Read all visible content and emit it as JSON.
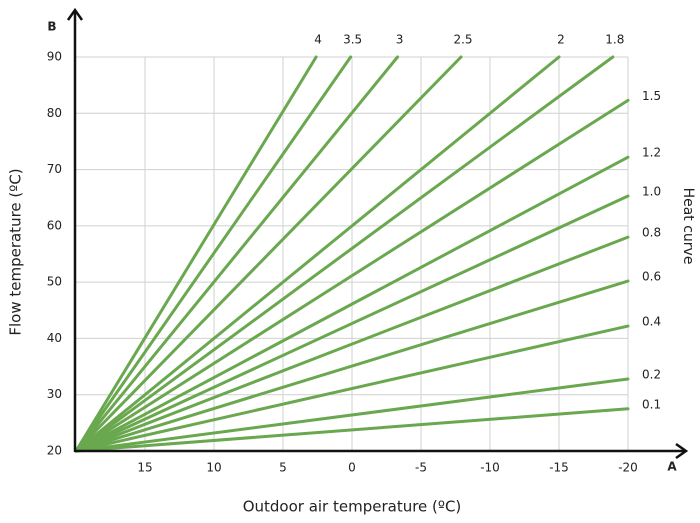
{
  "chart_data": {
    "type": "line",
    "x_label": "Outdoor air temperature (ºC)",
    "y_label": "Flow temperature (ºC)",
    "x_axis_name": "A",
    "y_axis_name": "B",
    "legend_title": "Heat curve",
    "xlim": [
      20,
      -20
    ],
    "xticks": [
      15,
      10,
      5,
      0,
      -5,
      -10,
      -15,
      -20
    ],
    "ylim": [
      20,
      90
    ],
    "yticks": [
      20,
      30,
      40,
      50,
      60,
      70,
      80,
      90
    ],
    "grid": true,
    "color": "#6aa84f",
    "series": [
      {
        "name": "4",
        "x": [
          20,
          2.6
        ],
        "values": [
          20,
          90
        ]
      },
      {
        "name": "3.5",
        "x": [
          20,
          0.1
        ],
        "values": [
          20,
          90
        ]
      },
      {
        "name": "3",
        "x": [
          20,
          -3.3
        ],
        "values": [
          20,
          90
        ]
      },
      {
        "name": "2.5",
        "x": [
          20,
          -7.9
        ],
        "values": [
          20,
          90
        ]
      },
      {
        "name": "2",
        "x": [
          20,
          -15
        ],
        "values": [
          20,
          90
        ]
      },
      {
        "name": "1.8",
        "x": [
          20,
          -18.9
        ],
        "values": [
          20,
          90
        ]
      },
      {
        "name": "1.5",
        "x": [
          20,
          -20
        ],
        "values": [
          20,
          82.3
        ]
      },
      {
        "name": "1.2",
        "x": [
          20,
          -20
        ],
        "values": [
          20,
          72.2
        ]
      },
      {
        "name": "1.0",
        "x": [
          20,
          -20
        ],
        "values": [
          20,
          65.3
        ]
      },
      {
        "name": "0.8",
        "x": [
          20,
          -20
        ],
        "values": [
          20,
          58
        ]
      },
      {
        "name": "0.6",
        "x": [
          20,
          -20
        ],
        "values": [
          20,
          50.2
        ]
      },
      {
        "name": "0.4",
        "x": [
          20,
          -20
        ],
        "values": [
          20,
          42.2
        ]
      },
      {
        "name": "0.2",
        "x": [
          20,
          -20
        ],
        "values": [
          20,
          32.8
        ]
      },
      {
        "name": "0.1",
        "x": [
          20,
          -20
        ],
        "values": [
          20,
          27.5
        ]
      }
    ]
  }
}
